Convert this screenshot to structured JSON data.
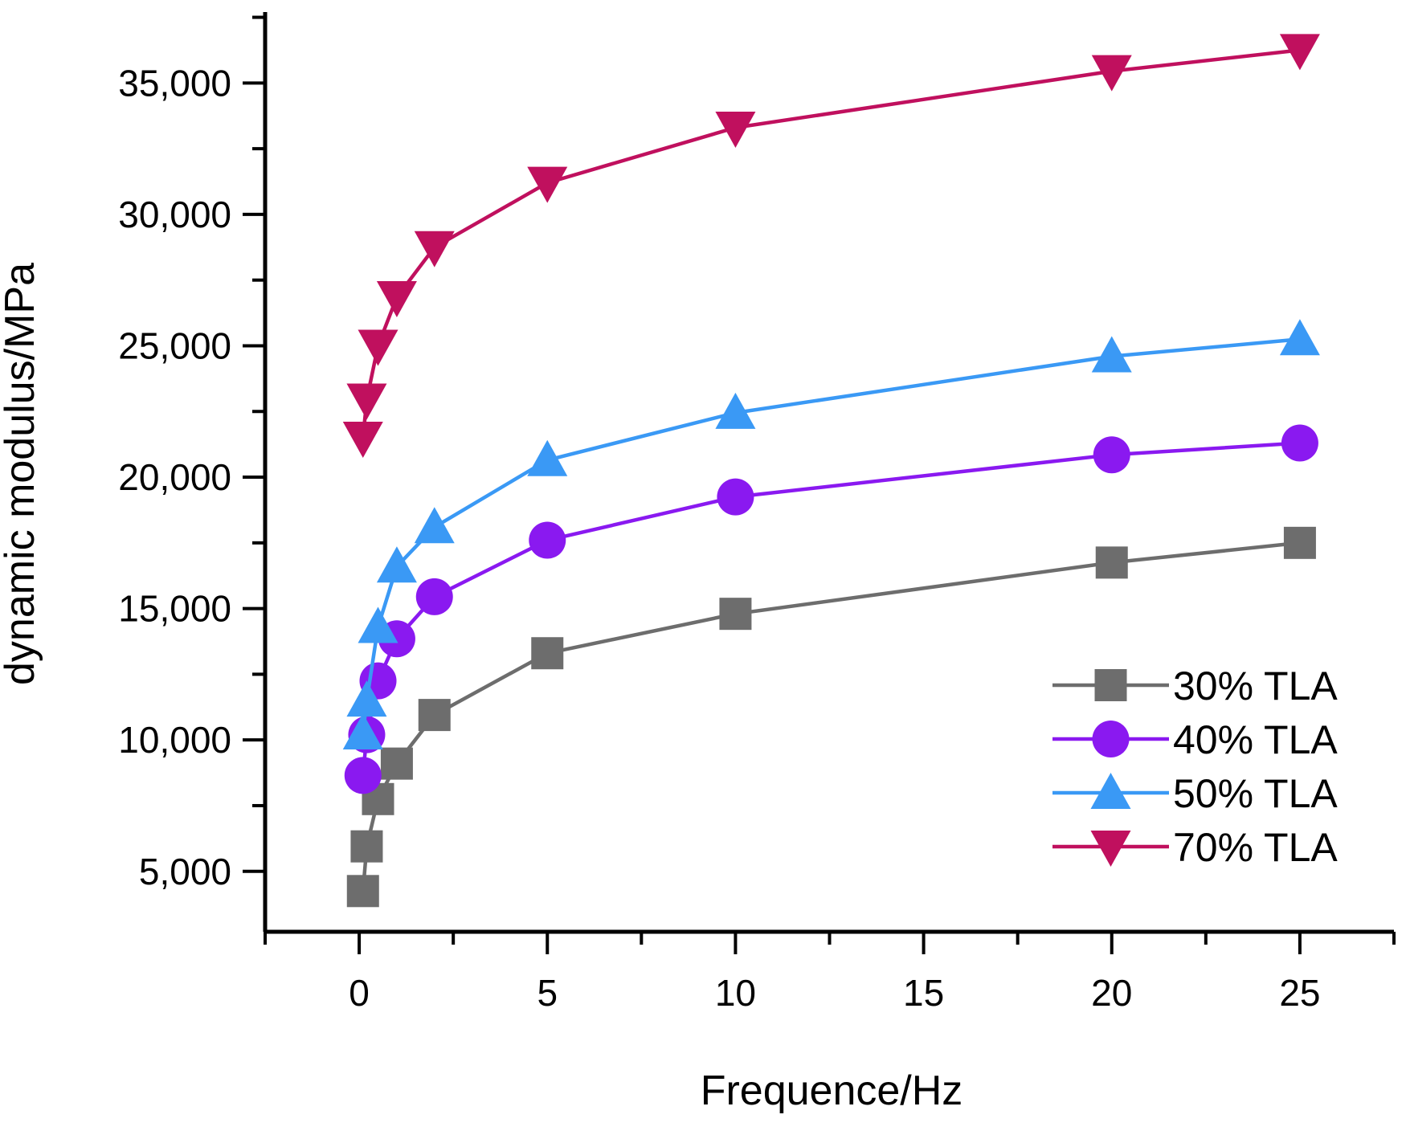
{
  "chart_data": {
    "type": "line",
    "title": "",
    "xlabel": "Frequence/Hz",
    "ylabel": "dynamic modulus/MPa",
    "xlim": [
      -2.5,
      27.5
    ],
    "ylim": [
      2700,
      37700
    ],
    "xticks": [
      0,
      5,
      10,
      15,
      20,
      25
    ],
    "xtick_labels": [
      "0",
      "5",
      "10",
      "15",
      "20",
      "25"
    ],
    "yticks": [
      5000,
      10000,
      15000,
      20000,
      25000,
      30000,
      35000
    ],
    "ytick_labels": [
      "5,000",
      "10,000",
      "15,000",
      "20,000",
      "25,000",
      "30,000",
      "35,000"
    ],
    "grid": false,
    "legend_position": "bottom-right",
    "x": [
      0.1,
      0.2,
      0.5,
      1,
      2,
      5,
      10,
      20,
      25
    ],
    "series": [
      {
        "name": "30% TLA",
        "marker": "square",
        "color": "#6d6d6d",
        "values": [
          4250,
          5950,
          7750,
          9100,
          10950,
          13300,
          14800,
          16750,
          17500
        ]
      },
      {
        "name": "40% TLA",
        "marker": "circle",
        "color": "#8a19f0",
        "values": [
          8650,
          10200,
          12250,
          13850,
          15450,
          17600,
          19250,
          20850,
          21300
        ]
      },
      {
        "name": "50% TLA",
        "marker": "triangle-up",
        "color": "#3a99f5",
        "values": [
          10250,
          11500,
          14300,
          16600,
          18100,
          20650,
          22450,
          24600,
          25250
        ]
      },
      {
        "name": "70% TLA",
        "marker": "triangle-down",
        "color": "#c0105e",
        "values": [
          21500,
          22950,
          25000,
          26850,
          28750,
          31200,
          33300,
          35450,
          36250
        ]
      }
    ]
  }
}
